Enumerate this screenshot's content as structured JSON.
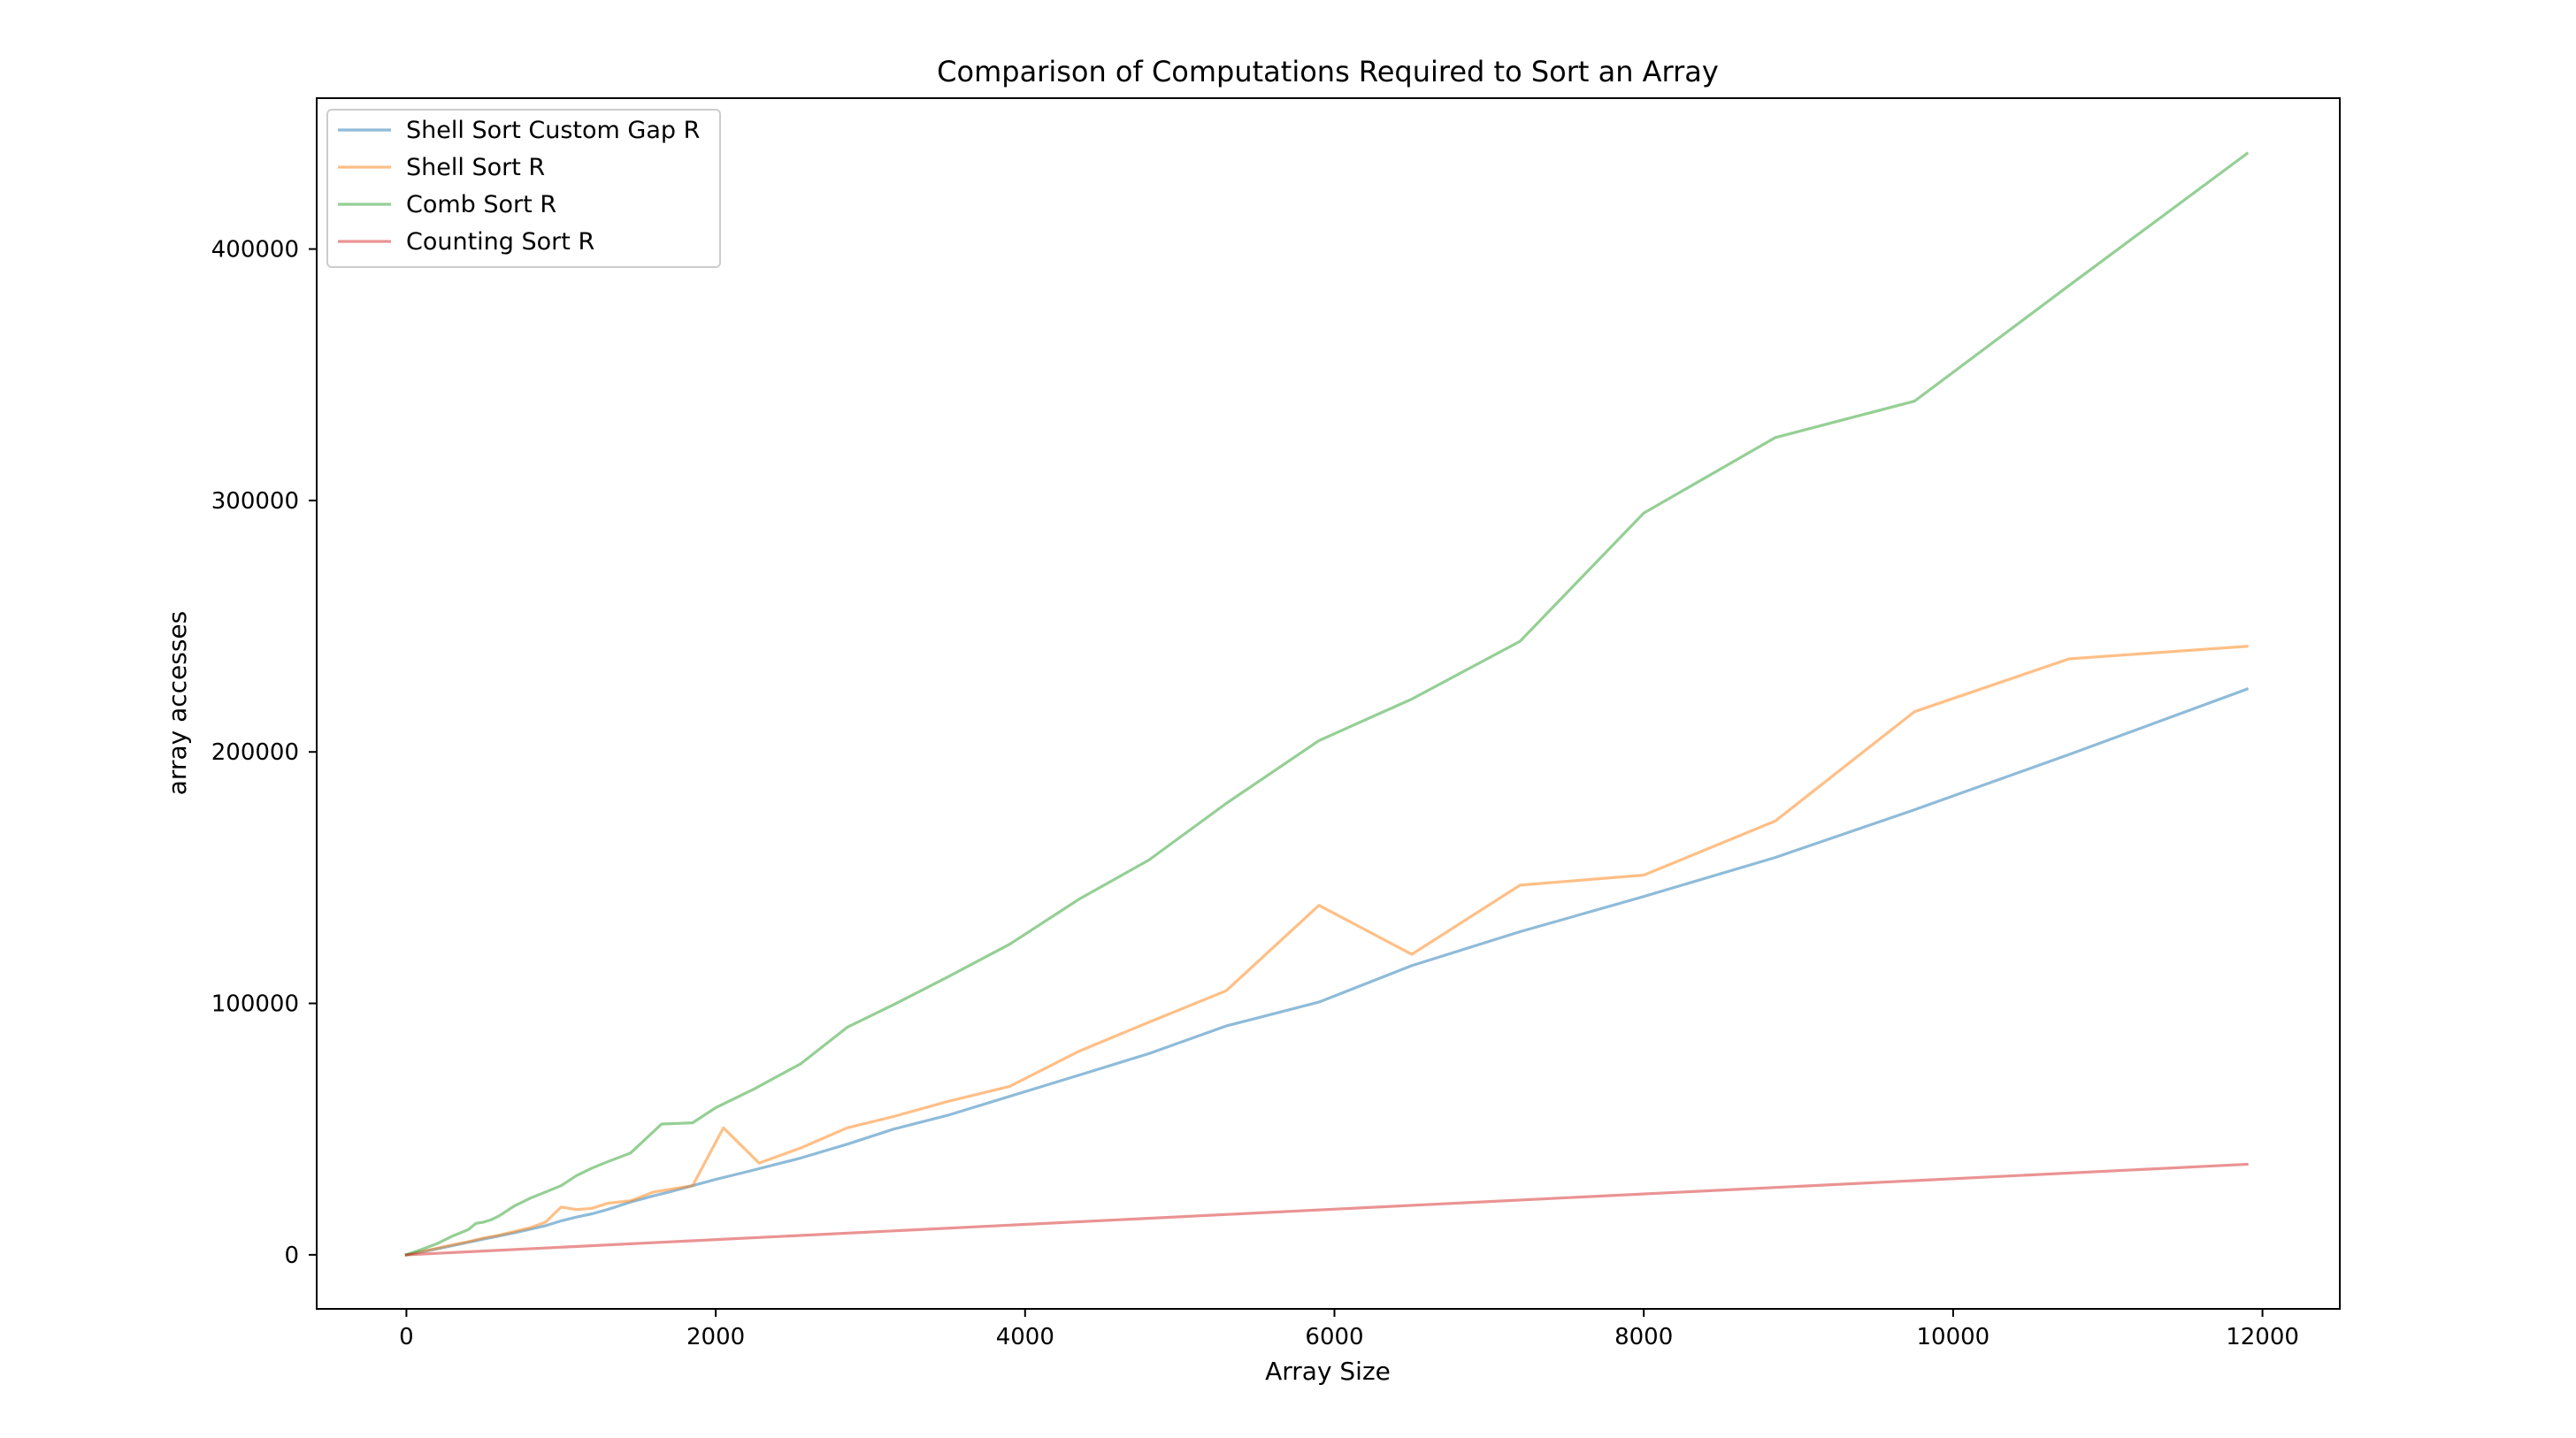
{
  "chart_data": {
    "type": "line",
    "title": "Comparison of Computations Required to Sort an Array",
    "xlabel": "Array Size",
    "ylabel": "array accesses",
    "xlim": [
      -580,
      12500
    ],
    "ylim": [
      -21500,
      460000
    ],
    "xticks": [
      0,
      2000,
      4000,
      6000,
      8000,
      10000,
      12000
    ],
    "yticks": [
      0,
      100000,
      200000,
      300000,
      400000
    ],
    "grid": false,
    "legend_position": "upper-left",
    "series": [
      {
        "name": "Shell Sort Custom Gap R",
        "color": "#1f77b4",
        "x": [
          0,
          100,
          200,
          300,
          400,
          500,
          600,
          700,
          800,
          900,
          1000,
          1100,
          1200,
          1300,
          1450,
          1600,
          1700,
          1850,
          2000,
          2200,
          2550,
          2850,
          3150,
          3500,
          3900,
          4350,
          4800,
          5300,
          5900,
          6500,
          7200,
          8000,
          8850,
          9750,
          10750,
          11900
        ],
        "y": [
          0,
          1200,
          2400,
          3700,
          5000,
          6300,
          7500,
          8800,
          10200,
          11600,
          13500,
          15000,
          16300,
          18000,
          21000,
          23500,
          25000,
          27500,
          30000,
          33000,
          38500,
          44000,
          50000,
          55500,
          63000,
          71500,
          80000,
          91000,
          100500,
          115000,
          128500,
          142500,
          158000,
          177000,
          199000,
          225000
        ]
      },
      {
        "name": "Shell Sort R",
        "color": "#ff7f0e",
        "x": [
          0,
          100,
          200,
          300,
          400,
          500,
          600,
          700,
          800,
          900,
          1000,
          1100,
          1200,
          1300,
          1450,
          1600,
          1700,
          1850,
          2050,
          2280,
          2550,
          2850,
          3150,
          3500,
          3900,
          4350,
          4800,
          5300,
          5900,
          6500,
          7200,
          8000,
          8850,
          9750,
          10750,
          11900
        ],
        "y": [
          0,
          1300,
          2600,
          4000,
          5200,
          6700,
          7800,
          9300,
          10800,
          13000,
          19000,
          18000,
          18500,
          20500,
          21500,
          25000,
          26000,
          27500,
          50500,
          36500,
          42500,
          50500,
          55000,
          61000,
          67000,
          81000,
          92500,
          105000,
          139000,
          119500,
          147000,
          151000,
          172500,
          216000,
          237000,
          242000
        ]
      },
      {
        "name": "Comb Sort R",
        "color": "#2ca02c",
        "x": [
          0,
          100,
          200,
          300,
          400,
          450,
          500,
          550,
          600,
          700,
          800,
          900,
          1000,
          1100,
          1200,
          1300,
          1450,
          1650,
          1850,
          2000,
          2250,
          2550,
          2850,
          3150,
          3500,
          3900,
          4350,
          4800,
          5300,
          5900,
          6500,
          7200,
          8000,
          8850,
          9750,
          10750,
          11900
        ],
        "y": [
          0,
          2200,
          4500,
          7500,
          10000,
          12500,
          13000,
          14000,
          15500,
          19500,
          22500,
          25000,
          27500,
          31500,
          34500,
          37000,
          40500,
          52000,
          52500,
          58500,
          66000,
          76000,
          90500,
          99500,
          110500,
          123500,
          141500,
          157000,
          179500,
          204500,
          221000,
          244000,
          295000,
          325000,
          339500,
          385500,
          438000
        ]
      },
      {
        "name": "Counting Sort R",
        "color": "#d62728",
        "x": [
          0,
          11900
        ],
        "y": [
          0,
          36000
        ]
      }
    ]
  }
}
